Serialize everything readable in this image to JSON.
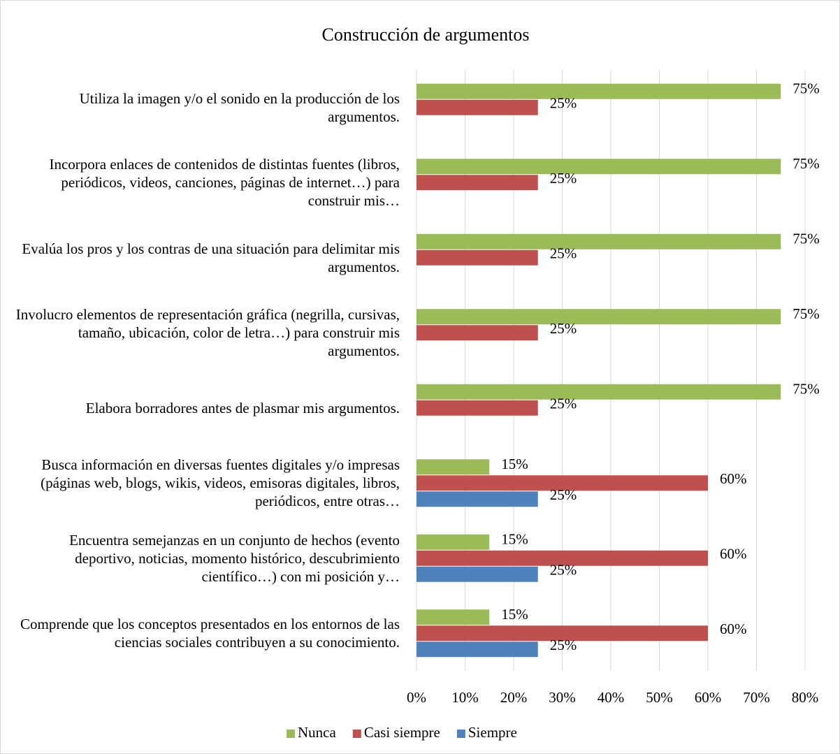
{
  "chart_data": {
    "type": "bar",
    "orientation": "horizontal",
    "title": "Construcción de argumentos",
    "categories": [
      "Utiliza la imagen y/o el sonido en la producción de los argumentos.",
      "Incorpora enlaces de contenidos de distintas fuentes (libros, periódicos, videos, canciones, páginas de internet…) para construir mis…",
      "Evalúa los pros y los contras de una situación para delimitar mis argumentos.",
      "Involucro elementos de representación gráfica (negrilla, cursivas, tamaño, ubicación, color de letra…) para construir mis argumentos.",
      "Elabora borradores antes de plasmar mis argumentos.",
      "Busca información en diversas fuentes digitales y/o impresas (páginas web, blogs, wikis, videos, emisoras digitales, libros, periódicos, entre otras…",
      "Encuentra semejanzas en un conjunto de hechos (evento deportivo, noticias, momento histórico, descubrimiento científico…) con mi posición y…",
      "Comprende que los conceptos presentados en los entornos de las ciencias sociales contribuyen a su conocimiento."
    ],
    "series": [
      {
        "name": "Nunca",
        "color": "#9bbb59",
        "values": [
          75,
          75,
          75,
          75,
          75,
          15,
          15,
          15
        ],
        "value_labels": [
          "75%",
          "75%",
          "75%",
          "75%",
          "75%",
          "15%",
          "15%",
          "15%"
        ]
      },
      {
        "name": "Casi siempre",
        "color": "#c0504d",
        "values": [
          25,
          25,
          25,
          25,
          25,
          60,
          60,
          60
        ],
        "value_labels": [
          "25%",
          "25%",
          "25%",
          "25%",
          "25%",
          "60%",
          "60%",
          "60%"
        ]
      },
      {
        "name": "Siempre",
        "color": "#4f81bd",
        "values": [
          null,
          null,
          null,
          null,
          null,
          25,
          25,
          25
        ],
        "value_labels": [
          null,
          null,
          null,
          null,
          null,
          "25%",
          "25%",
          "25%"
        ]
      }
    ],
    "xlim": [
      0,
      80
    ],
    "xticks": [
      {
        "value": 0,
        "label": "0%"
      },
      {
        "value": 10,
        "label": "10%"
      },
      {
        "value": 20,
        "label": "20%"
      },
      {
        "value": 30,
        "label": "30%"
      },
      {
        "value": 40,
        "label": "40%"
      },
      {
        "value": 50,
        "label": "50%"
      },
      {
        "value": 60,
        "label": "60%"
      },
      {
        "value": 70,
        "label": "70%"
      },
      {
        "value": 80,
        "label": "80%"
      }
    ],
    "grid": true,
    "legend": "bottom"
  }
}
